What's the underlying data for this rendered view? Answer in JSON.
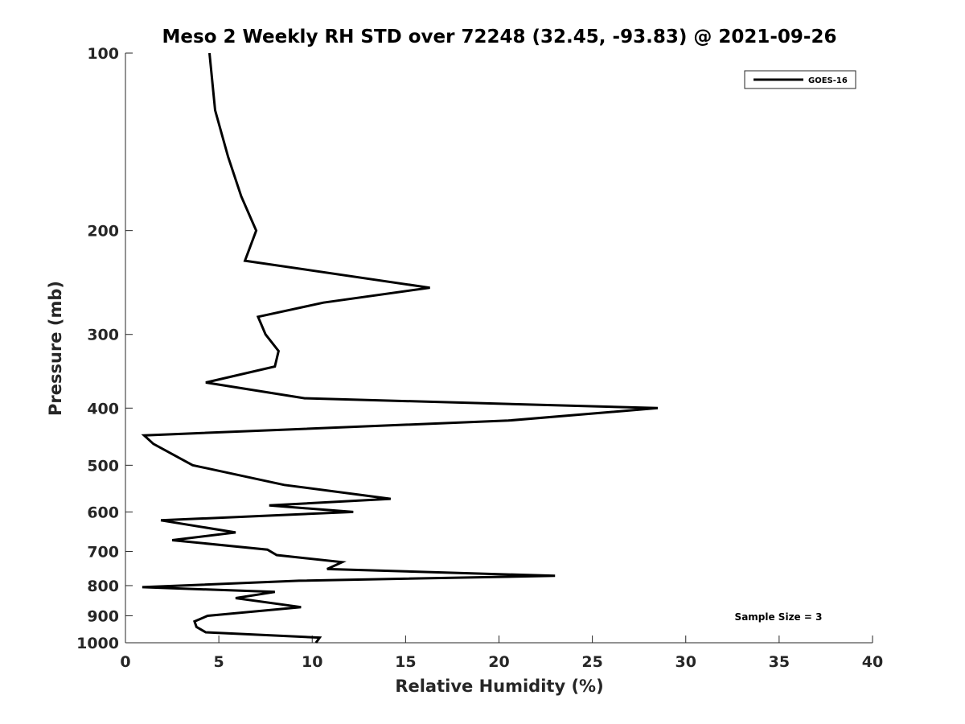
{
  "chart_data": {
    "type": "line",
    "title": "Meso 2 Weekly RH STD over 72248 (32.45, -93.83) @ 2021-09-26",
    "xlabel": "Relative Humidity (%)",
    "ylabel": "Pressure (mb)",
    "xlim": [
      0,
      40
    ],
    "ylim": [
      100,
      1000
    ],
    "y_scale": "log",
    "y_reversed": true,
    "x_ticks": [
      "0",
      "5",
      "10",
      "15",
      "20",
      "25",
      "30",
      "35",
      "40"
    ],
    "y_ticks": [
      "100",
      "200",
      "300",
      "400",
      "500",
      "600",
      "700",
      "800",
      "900",
      "1000"
    ],
    "grid": false,
    "legend": {
      "placement": "top-right",
      "entries": [
        "GOES-16"
      ]
    },
    "annotation": "Sample Size = 3",
    "series": [
      {
        "name": "GOES-16",
        "color": "#000000",
        "points": [
          [
            4.5,
            100
          ],
          [
            4.8,
            125
          ],
          [
            5.5,
            150
          ],
          [
            6.2,
            175
          ],
          [
            7.0,
            200
          ],
          [
            6.4,
            225
          ],
          [
            16.3,
            250
          ],
          [
            10.6,
            265
          ],
          [
            7.1,
            280
          ],
          [
            7.5,
            300
          ],
          [
            8.2,
            320
          ],
          [
            8.0,
            340
          ],
          [
            4.3,
            362
          ],
          [
            9.6,
            385
          ],
          [
            28.5,
            400
          ],
          [
            20.5,
            420
          ],
          [
            1.0,
            445
          ],
          [
            1.5,
            460
          ],
          [
            3.6,
            500
          ],
          [
            8.5,
            540
          ],
          [
            14.2,
            570
          ],
          [
            7.7,
            585
          ],
          [
            12.2,
            600
          ],
          [
            1.9,
            620
          ],
          [
            5.9,
            650
          ],
          [
            2.5,
            670
          ],
          [
            7.6,
            695
          ],
          [
            8.1,
            710
          ],
          [
            11.6,
            730
          ],
          [
            10.8,
            750
          ],
          [
            23.0,
            770
          ],
          [
            9.3,
            785
          ],
          [
            0.9,
            805
          ],
          [
            8.0,
            820
          ],
          [
            5.9,
            840
          ],
          [
            9.4,
            870
          ],
          [
            4.4,
            900
          ],
          [
            3.7,
            920
          ],
          [
            3.8,
            940
          ],
          [
            4.3,
            960
          ],
          [
            10.4,
            980
          ],
          [
            10.2,
            1000
          ]
        ]
      }
    ]
  }
}
